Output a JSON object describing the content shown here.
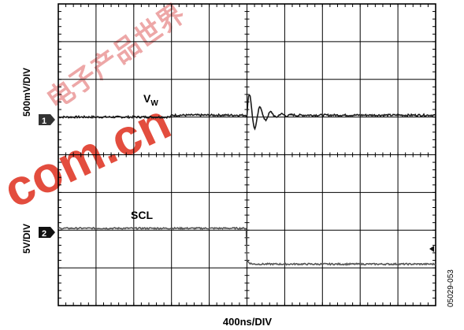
{
  "chart_data": {
    "type": "line",
    "title": "",
    "xlabel": "400ns/DIV",
    "time_per_div_ns": 400,
    "h_divisions": 10,
    "v_divisions": 8,
    "xlim_ns": [
      0,
      4000
    ],
    "trigger_time_ns": 2000,
    "grid": true,
    "figure_id": "05029-053",
    "series": [
      {
        "name": "VW",
        "label_main": "V",
        "label_sub": "W",
        "channel_marker": "1",
        "scale_label": "500mV/DIV",
        "color": "#1a1a1a",
        "baseline_div": 5.0,
        "events": [
          {
            "description": "small step at ~1200 ns",
            "t_ns": 1200,
            "step_div": 0.05
          },
          {
            "description": "damped ringing after SCL falling edge",
            "t_start_ns": 2000,
            "t_end_ns": 2550,
            "peak_div": 0.7
          }
        ]
      },
      {
        "name": "SCL",
        "label_main": "SCL",
        "channel_marker": "2",
        "scale_label": "5V/DIV",
        "color": "#555555",
        "events": [
          {
            "description": "high level before edge",
            "level_div": 2.05
          },
          {
            "description": "falling edge",
            "t_ns": 2000
          },
          {
            "description": "low level after edge",
            "level_div": 1.1
          }
        ]
      }
    ]
  },
  "watermark": {
    "latin": "com.cn",
    "cjk": "电子产品世界",
    "color": "#e03a2a"
  }
}
